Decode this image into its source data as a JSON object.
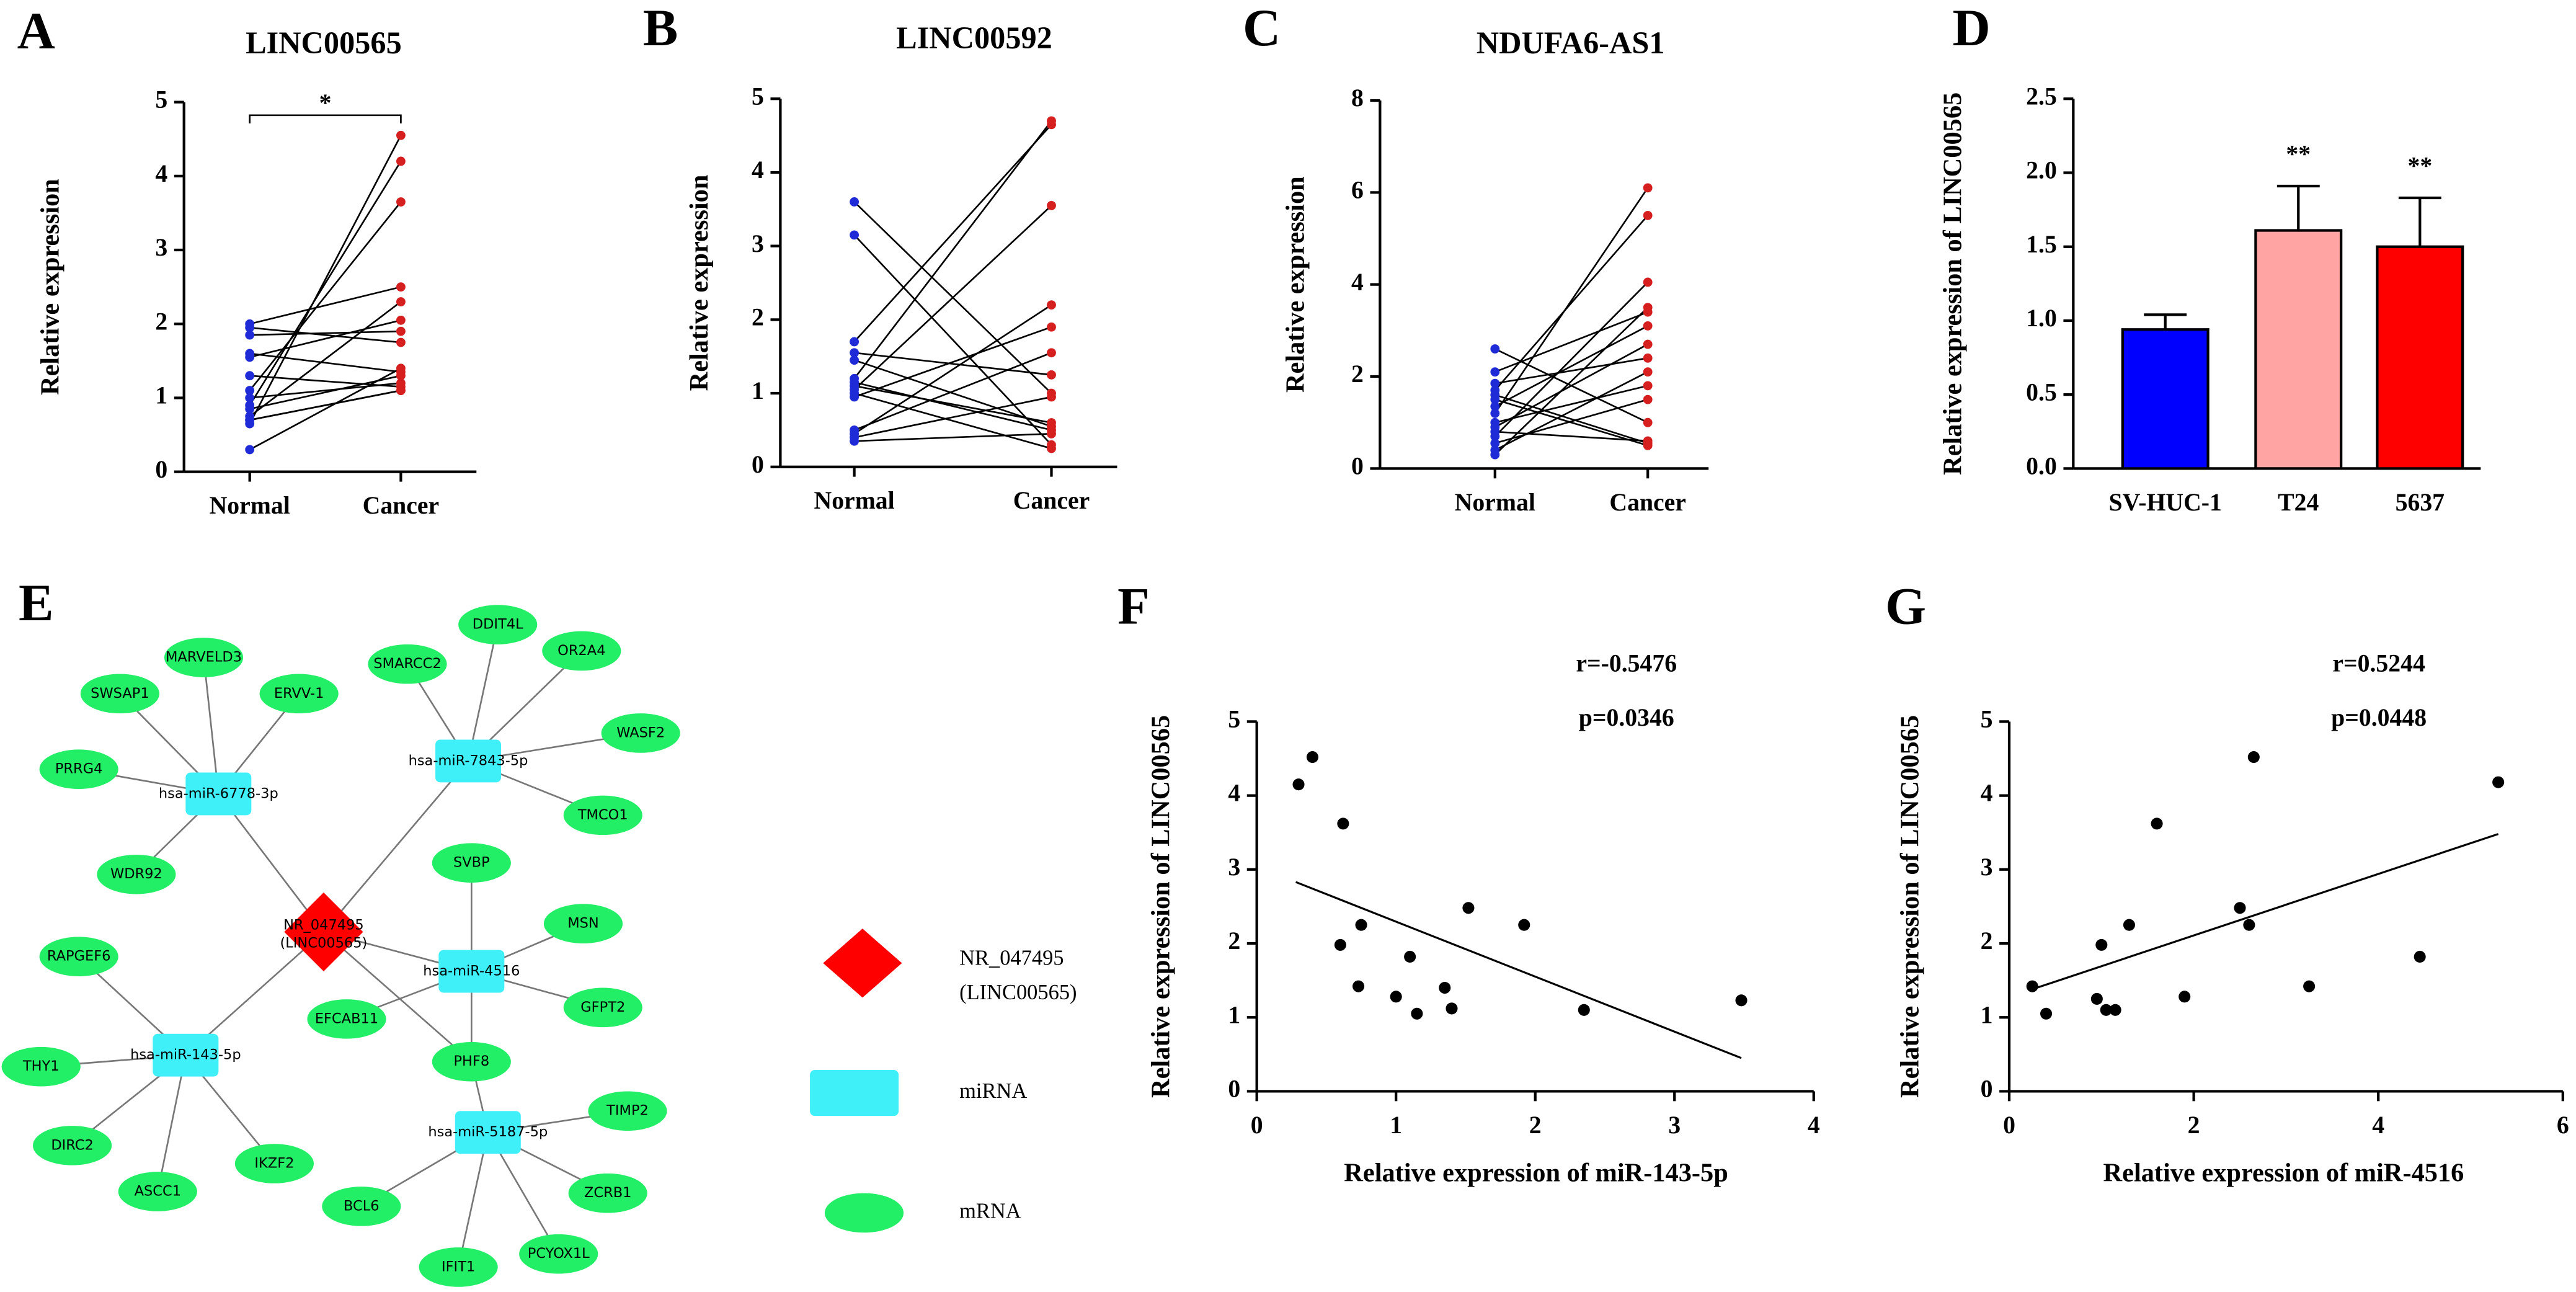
{
  "chart_data": [
    {
      "type": "paired",
      "panel_label": "A",
      "title": "LINC00565",
      "ylabel": "Relative expression",
      "categories": [
        "Normal",
        "Cancer"
      ],
      "colors": [
        "#1f2bd6",
        "#d61f1f"
      ],
      "values": [
        [
          0.3,
          0.65,
          0.7,
          0.75,
          0.85,
          0.9,
          1.0,
          1.1,
          1.3,
          1.55,
          1.6,
          1.85,
          1.95,
          2.0,
          0.7
        ],
        [
          1.4,
          4.55,
          1.1,
          2.3,
          1.3,
          4.2,
          1.2,
          3.65,
          1.15,
          2.05,
          1.35,
          1.9,
          1.75,
          2.5,
          1.1
        ]
      ],
      "significance": "*",
      "ylim": [
        0,
        5
      ],
      "yticks": [
        0,
        1,
        2,
        3,
        4,
        5
      ]
    },
    {
      "type": "paired",
      "panel_label": "B",
      "title": "LINC00592",
      "ylabel": "Relative expression",
      "categories": [
        "Normal",
        "Cancer"
      ],
      "colors": [
        "#1f2bd6",
        "#d61f1f"
      ],
      "values": [
        [
          3.6,
          3.15,
          1.7,
          1.55,
          1.45,
          1.2,
          1.1,
          1.05,
          1.0,
          0.95,
          0.5,
          0.45,
          0.4,
          0.35,
          1.15
        ],
        [
          1.0,
          0.3,
          4.65,
          1.25,
          0.55,
          4.7,
          0.6,
          3.55,
          0.25,
          1.9,
          1.55,
          2.2,
          0.95,
          0.45,
          0.5
        ]
      ],
      "ylim": [
        0,
        5
      ],
      "yticks": [
        0,
        1,
        2,
        3,
        4,
        5
      ]
    },
    {
      "type": "paired",
      "panel_label": "C",
      "title": "NDUFA6-AS1",
      "ylabel": "Relative expression",
      "categories": [
        "Normal",
        "Cancer"
      ],
      "colors": [
        "#1f2bd6",
        "#d61f1f"
      ],
      "values": [
        [
          2.6,
          2.1,
          1.85,
          1.7,
          1.5,
          1.35,
          1.2,
          1.0,
          0.9,
          0.8,
          0.7,
          0.55,
          0.4,
          0.3,
          1.6
        ],
        [
          1.0,
          3.4,
          2.4,
          5.5,
          0.5,
          3.1,
          6.1,
          1.8,
          2.7,
          0.6,
          4.05,
          1.5,
          2.1,
          3.5,
          0.55
        ]
      ],
      "ylim": [
        0,
        8
      ],
      "yticks": [
        0,
        2,
        4,
        6,
        8
      ]
    },
    {
      "type": "bar",
      "panel_label": "D",
      "ylabel": "Relative expression of LINC00565",
      "categories": [
        "SV-HUC-1",
        "T24",
        "5637"
      ],
      "values": [
        0.94,
        1.61,
        1.5
      ],
      "errors": [
        0.1,
        0.3,
        0.33
      ],
      "colors": [
        "#0000ff",
        "#ffa3a3",
        "#ff0000"
      ],
      "significance": [
        null,
        "**",
        "**"
      ],
      "ylim": [
        0,
        2.5
      ],
      "yticks": [
        {
          "value": 0,
          "label": "0.0"
        },
        {
          "value": 0.5,
          "label": "0.5"
        },
        {
          "value": 1,
          "label": "1.0"
        },
        {
          "value": 1.5,
          "label": "1.5"
        },
        {
          "value": 2,
          "label": "2.0"
        },
        {
          "value": 2.5,
          "label": "2.5"
        }
      ]
    },
    {
      "type": "network",
      "panel_label": "E",
      "nodes": [
        {
          "label": "NR_047495",
          "sublabel": "(LINC00565)",
          "group": 0
        },
        {
          "label": "hsa-miR-6778-3p",
          "group": 1
        },
        {
          "label": "hsa-miR-7843-5p",
          "group": 1
        },
        {
          "label": "hsa-miR-4516",
          "group": 1
        },
        {
          "label": "hsa-miR-143-5p",
          "group": 1
        },
        {
          "label": "hsa-miR-5187-5p",
          "group": 1
        },
        {
          "label": "MARVELD3",
          "group": 2
        },
        {
          "label": "SWSAP1",
          "group": 2
        },
        {
          "label": "ERVV-1",
          "group": 2
        },
        {
          "label": "PRRG4",
          "group": 2
        },
        {
          "label": "WDR92",
          "group": 2
        },
        {
          "label": "DDIT4L",
          "group": 2
        },
        {
          "label": "SMARCC2",
          "group": 2
        },
        {
          "label": "OR2A4",
          "group": 2
        },
        {
          "label": "WASF2",
          "group": 2
        },
        {
          "label": "TMCO1",
          "group": 2
        },
        {
          "label": "SVBP",
          "group": 2
        },
        {
          "label": "MSN",
          "group": 2
        },
        {
          "label": "GFPT2",
          "group": 2
        },
        {
          "label": "EFCAB11",
          "group": 2
        },
        {
          "label": "PHF8",
          "group": 2
        },
        {
          "label": "RAPGEF6",
          "group": 2
        },
        {
          "label": "THY1",
          "group": 2
        },
        {
          "label": "DIRC2",
          "group": 2
        },
        {
          "label": "ASCC1",
          "group": 2
        },
        {
          "label": "IKZF2",
          "group": 2
        },
        {
          "label": "TIMP2",
          "group": 2
        },
        {
          "label": "ZCRB1",
          "group": 2
        },
        {
          "label": "BCL6",
          "group": 2
        },
        {
          "label": "IFIT1",
          "group": 2
        },
        {
          "label": "PCYOX1L",
          "group": 2
        }
      ],
      "edges": [
        [
          0,
          1
        ],
        [
          0,
          2
        ],
        [
          0,
          3
        ],
        [
          0,
          4
        ],
        [
          0,
          20
        ],
        [
          1,
          6
        ],
        [
          1,
          7
        ],
        [
          1,
          8
        ],
        [
          1,
          9
        ],
        [
          1,
          10
        ],
        [
          2,
          11
        ],
        [
          2,
          12
        ],
        [
          2,
          13
        ],
        [
          2,
          14
        ],
        [
          2,
          15
        ],
        [
          3,
          16
        ],
        [
          3,
          17
        ],
        [
          3,
          18
        ],
        [
          3,
          19
        ],
        [
          3,
          20
        ],
        [
          4,
          21
        ],
        [
          4,
          22
        ],
        [
          4,
          23
        ],
        [
          4,
          24
        ],
        [
          4,
          25
        ],
        [
          5,
          20
        ],
        [
          5,
          26
        ],
        [
          5,
          27
        ],
        [
          5,
          28
        ],
        [
          5,
          29
        ],
        [
          5,
          30
        ]
      ],
      "legend": [
        {
          "label": "NR_047495",
          "sublabel": "(LINC00565)",
          "shape": "diamond",
          "color": "#ff0000"
        },
        {
          "label": "miRNA",
          "shape": "rect",
          "color": "#3ff0f8"
        },
        {
          "label": "mRNA",
          "shape": "ellipse",
          "color": "#22ee66"
        }
      ]
    },
    {
      "type": "scatter",
      "panel_label": "F",
      "xlabel": "Relative expression of miR-143-5p",
      "ylabel": "Relative expression of LINC00565",
      "annotations": [
        "r=-0.5476",
        "p=0.0346"
      ],
      "color": "#000000",
      "x": [
        0.3,
        0.4,
        0.62,
        0.6,
        0.75,
        0.73,
        1.0,
        1.1,
        1.15,
        1.35,
        1.4,
        1.52,
        1.92,
        2.35,
        3.48
      ],
      "y": [
        4.15,
        4.52,
        3.62,
        1.98,
        2.25,
        1.42,
        1.28,
        1.82,
        1.05,
        1.4,
        1.12,
        2.48,
        2.25,
        1.1,
        1.23
      ],
      "fit": {
        "x": [
          0.28,
          3.48
        ],
        "y": [
          2.83,
          0.45
        ]
      },
      "xlim": [
        0,
        4
      ],
      "xticks": [
        0,
        1,
        2,
        3,
        4
      ],
      "ylim": [
        0,
        5
      ],
      "yticks": [
        0,
        1,
        2,
        3,
        4,
        5
      ]
    },
    {
      "type": "scatter",
      "panel_label": "G",
      "xlabel": "Relative expression of miR-4516",
      "ylabel": "Relative expression of LINC00565",
      "annotations": [
        "r=0.5244",
        "p=0.0448"
      ],
      "color": "#000000",
      "x": [
        0.25,
        0.4,
        1.0,
        0.95,
        1.05,
        1.15,
        1.3,
        1.6,
        1.9,
        2.5,
        2.6,
        2.65,
        3.25,
        4.45,
        5.3
      ],
      "y": [
        1.42,
        1.05,
        1.98,
        1.25,
        1.1,
        1.1,
        2.25,
        3.62,
        1.28,
        2.48,
        2.25,
        4.52,
        1.42,
        1.82,
        4.18
      ],
      "fit": {
        "x": [
          0.25,
          5.3
        ],
        "y": [
          1.38,
          3.48
        ]
      },
      "xlim": [
        0,
        6
      ],
      "xticks": [
        0,
        2,
        4,
        6
      ],
      "ylim": [
        0,
        5
      ],
      "yticks": [
        0,
        1,
        2,
        3,
        4,
        5
      ]
    }
  ]
}
